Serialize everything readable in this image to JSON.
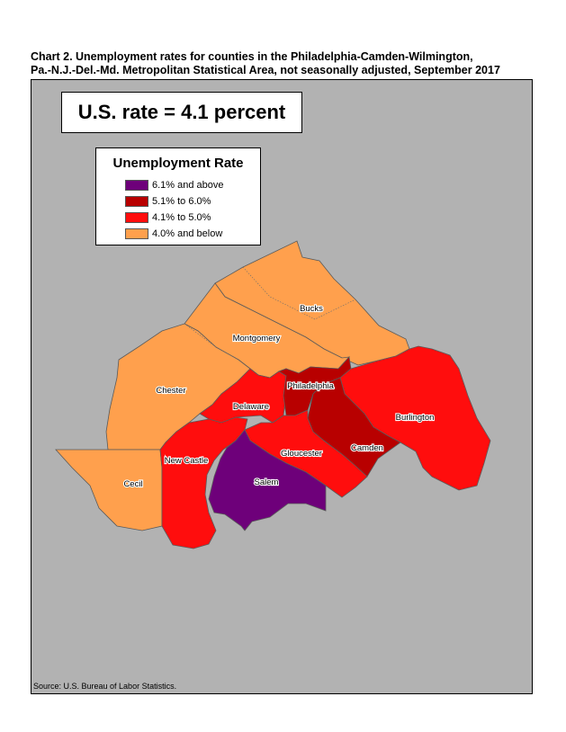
{
  "title": {
    "line1": "Chart 2. Unemployment rates for counties in the Philadelphia-Camden-Wilmington,",
    "line2": "Pa.-N.J.-Del.-Md. Metropolitan Statistical Area, not seasonally adjusted, September 2017"
  },
  "us_rate": "U.S. rate = 4.1 percent",
  "legend": {
    "title": "Unemployment Rate",
    "items": [
      {
        "label": "6.1% and above",
        "color": "#6e007a"
      },
      {
        "label": "5.1% to 6.0%",
        "color": "#b80000"
      },
      {
        "label": "4.1% to 5.0%",
        "color": "#ff0d0d"
      },
      {
        "label": "4.0% and below",
        "color": "#ffa04d"
      }
    ]
  },
  "counties": [
    {
      "name": "Bucks",
      "category": "4.0% and below"
    },
    {
      "name": "Montgomery",
      "category": "4.0% and below"
    },
    {
      "name": "Chester",
      "category": "4.0% and below"
    },
    {
      "name": "Cecil",
      "category": "4.0% and below"
    },
    {
      "name": "Philadelphia",
      "category": "5.1% to 6.0%"
    },
    {
      "name": "Camden",
      "category": "5.1% to 6.0%"
    },
    {
      "name": "Delaware",
      "category": "4.1% to 5.0%"
    },
    {
      "name": "Burlington",
      "category": "4.1% to 5.0%"
    },
    {
      "name": "Gloucester",
      "category": "4.1% to 5.0%"
    },
    {
      "name": "New Castle",
      "category": "4.1% to 5.0%"
    },
    {
      "name": "Salem",
      "category": "6.1% and above"
    }
  ],
  "source": "Source: U.S. Bureau of Labor Statistics."
}
